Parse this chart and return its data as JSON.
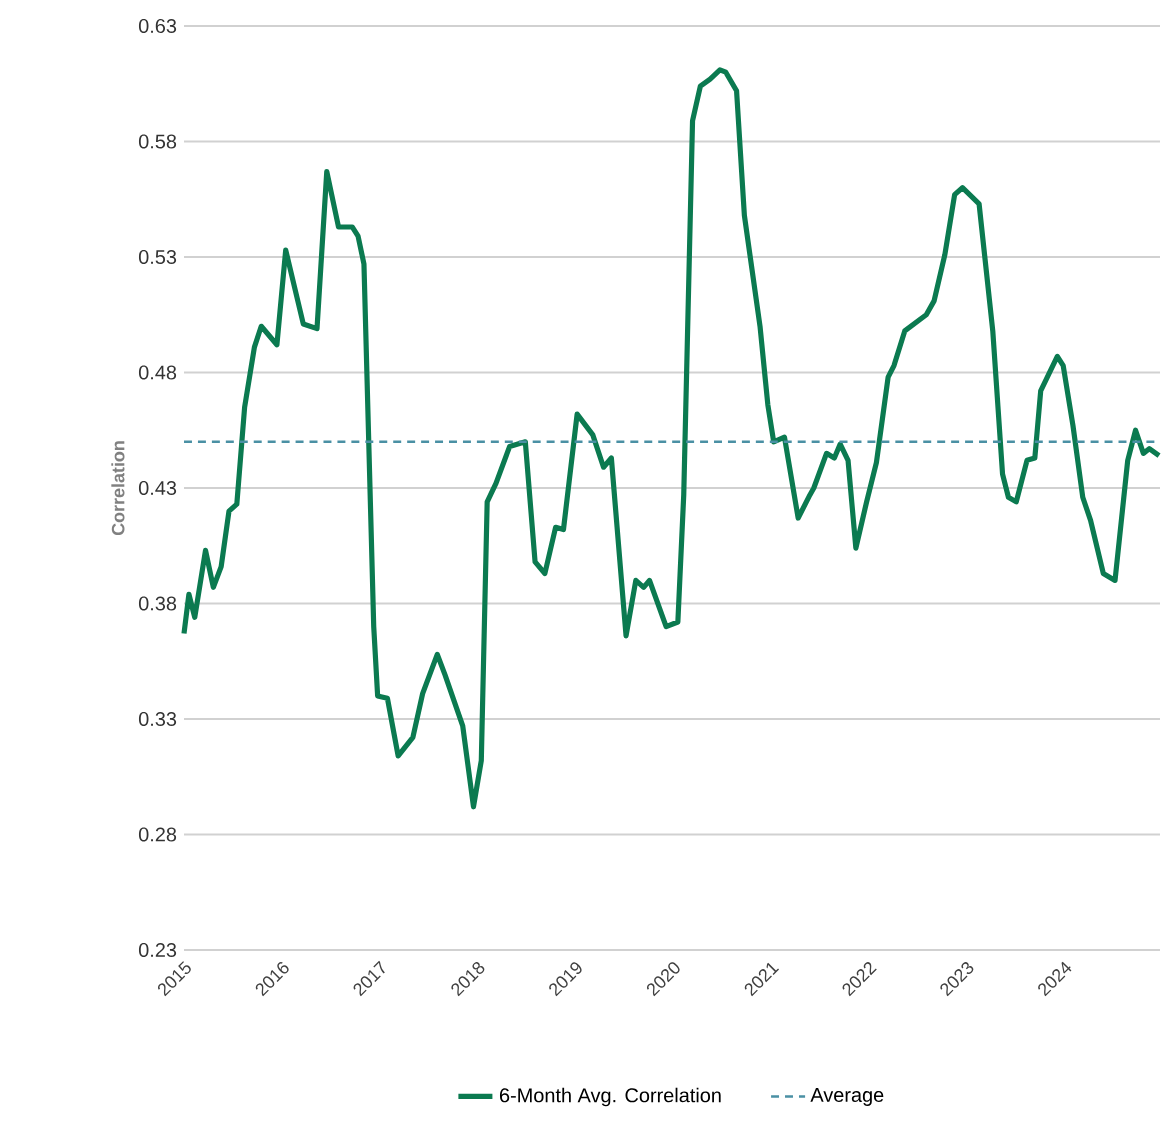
{
  "chart_data": {
    "type": "line",
    "ylabel": "Correlation",
    "x": [
      2015.0,
      2015.05,
      2015.11,
      2015.22,
      2015.3,
      2015.38,
      2015.46,
      2015.54,
      2015.62,
      2015.72,
      2015.79,
      2015.95,
      2016.04,
      2016.22,
      2016.36,
      2016.46,
      2016.58,
      2016.72,
      2016.78,
      2016.84,
      2016.94,
      2016.98,
      2017.08,
      2017.19,
      2017.34,
      2017.44,
      2017.59,
      2017.67,
      2017.85,
      2017.96,
      2018.04,
      2018.1,
      2018.19,
      2018.33,
      2018.49,
      2018.59,
      2018.69,
      2018.8,
      2018.88,
      2019.02,
      2019.18,
      2019.29,
      2019.37,
      2019.52,
      2019.62,
      2019.7,
      2019.76,
      2019.93,
      2020.05,
      2020.11,
      2020.2,
      2020.28,
      2020.38,
      2020.48,
      2020.54,
      2020.65,
      2020.73,
      2020.89,
      2020.97,
      2021.03,
      2021.14,
      2021.28,
      2021.4,
      2021.44,
      2021.57,
      2021.65,
      2021.71,
      2021.79,
      2021.87,
      2021.98,
      2022.08,
      2022.2,
      2022.26,
      2022.37,
      2022.59,
      2022.67,
      2022.78,
      2022.88,
      2022.96,
      2023.13,
      2023.27,
      2023.37,
      2023.43,
      2023.51,
      2023.62,
      2023.7,
      2023.76,
      2023.93,
      2023.99,
      2024.09,
      2024.19,
      2024.27,
      2024.4,
      2024.52,
      2024.65,
      2024.73,
      2024.81,
      2024.87,
      2024.97
    ],
    "series": [
      {
        "name": "6-Month Avg. Correlation",
        "color": "#0b7a50",
        "values": [
          0.367,
          0.384,
          0.374,
          0.403,
          0.387,
          0.396,
          0.42,
          0.423,
          0.465,
          0.491,
          0.5,
          0.492,
          0.533,
          0.501,
          0.499,
          0.567,
          0.543,
          0.543,
          0.539,
          0.527,
          0.37,
          0.34,
          0.339,
          0.314,
          0.322,
          0.341,
          0.358,
          0.349,
          0.327,
          0.292,
          0.312,
          0.424,
          0.432,
          0.448,
          0.45,
          0.398,
          0.393,
          0.413,
          0.412,
          0.462,
          0.453,
          0.439,
          0.443,
          0.366,
          0.39,
          0.387,
          0.39,
          0.37,
          0.372,
          0.427,
          0.589,
          0.604,
          0.607,
          0.611,
          0.61,
          0.602,
          0.548,
          0.5,
          0.466,
          0.45,
          0.452,
          0.417,
          0.427,
          0.43,
          0.445,
          0.443,
          0.449,
          0.442,
          0.404,
          0.424,
          0.441,
          0.478,
          0.483,
          0.498,
          0.505,
          0.511,
          0.531,
          0.557,
          0.56,
          0.553,
          0.498,
          0.436,
          0.426,
          0.424,
          0.442,
          0.443,
          0.472,
          0.487,
          0.483,
          0.457,
          0.426,
          0.416,
          0.393,
          0.39,
          0.442,
          0.455,
          0.445,
          0.447,
          0.444
        ]
      }
    ],
    "xlim": [
      2015,
      2024.98
    ],
    "xticks": [
      2015,
      2016,
      2017,
      2018,
      2019,
      2020,
      2021,
      2022,
      2023,
      2024
    ],
    "ylim": [
      0.23,
      0.63
    ],
    "yticks": [
      0.23,
      0.28,
      0.33,
      0.38,
      0.43,
      0.48,
      0.53,
      0.58,
      0.63
    ],
    "ref_lines": [
      {
        "axis": "y",
        "value": 0.45,
        "label": "Average",
        "color": "#4a90a4",
        "line_style": "dashed"
      }
    ],
    "grid": "y",
    "legend": "bottom",
    "line_style": "solid",
    "marker": "none"
  }
}
